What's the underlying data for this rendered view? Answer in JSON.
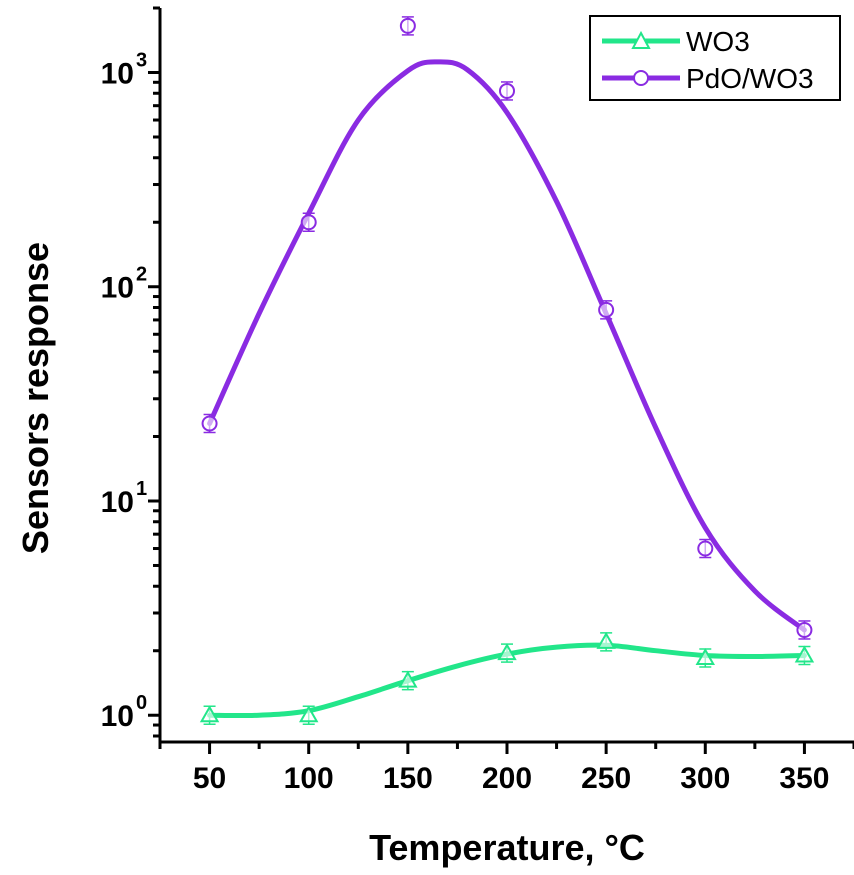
{
  "chart_data": {
    "type": "line",
    "xlabel": "Temperature, °C",
    "ylabel": "Sensors response",
    "xlim": [
      25,
      375
    ],
    "ylim": [
      0.75,
      2000
    ],
    "yscale": "log",
    "xticks": [
      50,
      100,
      150,
      200,
      250,
      300,
      350
    ],
    "yticks": [
      {
        "base": "10",
        "exp": "0",
        "value": 1
      },
      {
        "base": "10",
        "exp": "1",
        "value": 10
      },
      {
        "base": "10",
        "exp": "2",
        "value": 100
      },
      {
        "base": "10",
        "exp": "3",
        "value": 1000
      }
    ],
    "grid": false,
    "legend_position": "top-right",
    "series": [
      {
        "name": "WO3",
        "color": "#22e68a",
        "marker": "triangle",
        "x": [
          50,
          100,
          150,
          200,
          250,
          300,
          350
        ],
        "y": [
          1.0,
          1.0,
          1.45,
          1.95,
          2.2,
          1.85,
          1.9
        ],
        "fit_x": [
          50,
          75,
          100,
          125,
          150,
          175,
          200,
          225,
          250,
          275,
          300,
          325,
          350
        ],
        "fit_y": [
          1.0,
          1.0,
          1.05,
          1.22,
          1.45,
          1.7,
          1.93,
          2.08,
          2.12,
          2.0,
          1.9,
          1.88,
          1.9
        ]
      },
      {
        "name": "PdO/WO3",
        "color": "#8a2be2",
        "marker": "circle",
        "x": [
          50,
          100,
          150,
          200,
          250,
          300,
          350
        ],
        "y": [
          23,
          200,
          1650,
          820,
          78,
          6,
          2.5
        ],
        "fit_x": [
          50,
          75,
          100,
          125,
          150,
          165,
          180,
          200,
          225,
          250,
          275,
          300,
          325,
          350
        ],
        "fit_y": [
          23,
          75,
          220,
          600,
          1020,
          1120,
          1030,
          650,
          250,
          75,
          22,
          7.5,
          3.8,
          2.5
        ]
      }
    ]
  }
}
